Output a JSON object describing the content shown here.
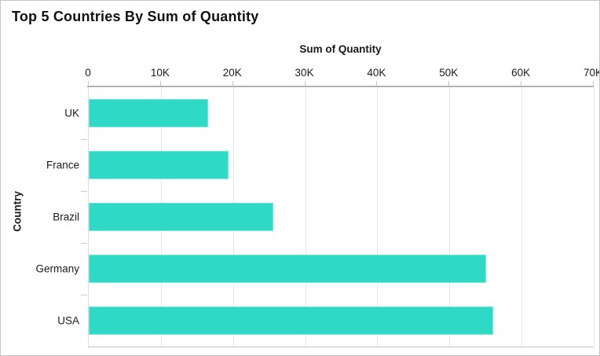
{
  "chart_data": {
    "type": "bar",
    "orientation": "horizontal",
    "title": "Top 5 Countries By Sum of Quantity",
    "xlabel": "Sum of Quantity",
    "ylabel": "Country",
    "categories": [
      "UK",
      "France",
      "Brazil",
      "Germany",
      "USA"
    ],
    "values": [
      16500,
      19400,
      25600,
      55100,
      56100
    ],
    "xlim": [
      0,
      70000
    ],
    "xtick_labels": [
      "0",
      "10K",
      "20K",
      "30K",
      "40K",
      "50K",
      "60K",
      "70K"
    ],
    "grid": true,
    "legend": false,
    "axis_position": "top",
    "bar_color": "#2ed9c5"
  },
  "colors": {
    "bar": "#2ed9c5",
    "text": "#1a1a1a",
    "axis_line": "#b2b2b2",
    "gridline": "#e7e7e7",
    "border": "#c6c6c6",
    "background": "#ffffff"
  }
}
